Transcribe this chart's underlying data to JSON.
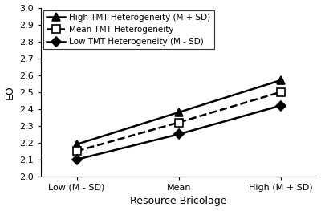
{
  "x_labels": [
    "Low (M - SD)",
    "Mean",
    "High (M + SD)"
  ],
  "x_values": [
    0,
    1,
    2
  ],
  "series": [
    {
      "label": "High TMT Heterogeneity (M + SD)",
      "y": [
        2.19,
        2.38,
        2.57
      ],
      "linestyle": "solid",
      "marker": "^",
      "markersize": 7,
      "color": "black",
      "linewidth": 1.8,
      "markerfacecolor": "black"
    },
    {
      "label": "Mean TMT Heterogeneity",
      "y": [
        2.15,
        2.32,
        2.5
      ],
      "linestyle": "dashed",
      "marker": "s",
      "markersize": 7,
      "color": "black",
      "linewidth": 1.8,
      "markerfacecolor": "white"
    },
    {
      "label": "Low TMT Heterogeneity (M - SD)",
      "y": [
        2.1,
        2.25,
        2.42
      ],
      "linestyle": "solid",
      "marker": "D",
      "markersize": 6,
      "color": "black",
      "linewidth": 1.8,
      "markerfacecolor": "black"
    }
  ],
  "xlabel": "Resource Bricolage",
  "ylabel": "EO",
  "ylim": [
    2.0,
    3.0
  ],
  "yticks": [
    2.0,
    2.1,
    2.2,
    2.3,
    2.4,
    2.5,
    2.6,
    2.7,
    2.8,
    2.9,
    3.0
  ],
  "background_color": "#ffffff",
  "legend_loc": "upper left",
  "legend_fontsize": 7.5,
  "axis_label_fontsize": 9,
  "tick_fontsize": 8
}
